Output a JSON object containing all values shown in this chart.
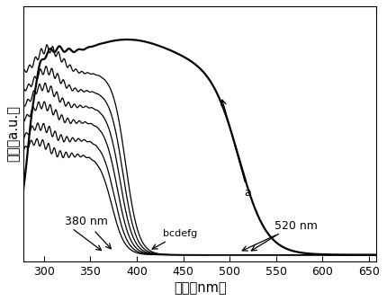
{
  "xlabel": "波长（nm）",
  "ylabel": "强度（a.u.）",
  "xlim": [
    278,
    658
  ],
  "ylim": [
    -0.03,
    1.12
  ],
  "xticks": [
    300,
    350,
    400,
    450,
    500,
    550,
    600,
    650
  ],
  "background_color": "#ffffff",
  "curve_a_color": "#000000",
  "curve_bcdefg_color": "#000000",
  "linewidth_a": 1.6,
  "linewidth_bcdefg": 0.9
}
